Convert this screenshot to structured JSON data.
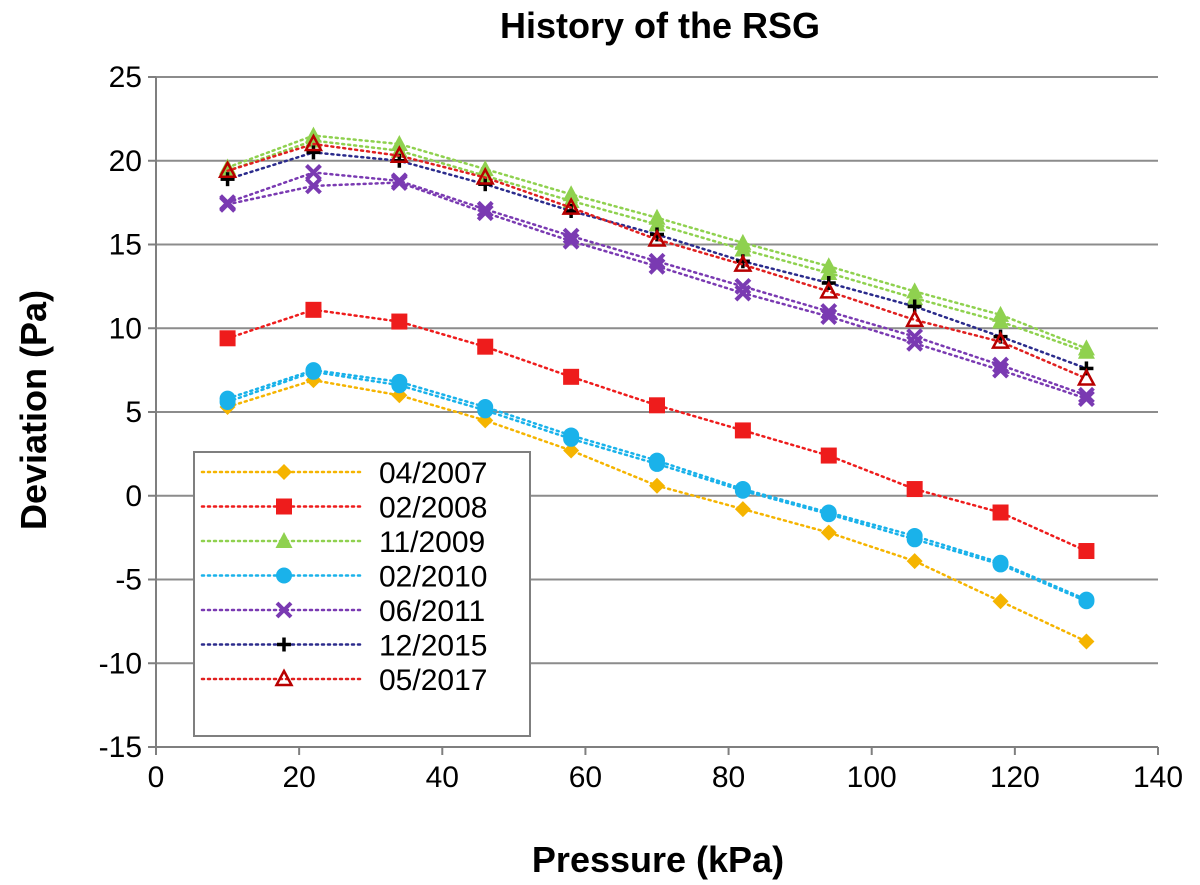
{
  "chart_data": {
    "type": "line",
    "title": "History of the RSG",
    "xlabel": "Pressure (kPa)",
    "ylabel": "Deviation (Pa)",
    "xlim": [
      0,
      140
    ],
    "ylim": [
      -15,
      25
    ],
    "xticks": [
      0,
      20,
      40,
      60,
      80,
      100,
      120,
      140
    ],
    "yticks": [
      -15,
      -10,
      -5,
      0,
      5,
      10,
      15,
      20,
      25
    ],
    "grid": "horizontal",
    "legend_position": "bottom-left",
    "series": [
      {
        "name": "04/2007",
        "color": "#f5b400",
        "marker": "diamond",
        "points": [
          [
            10,
            5.3
          ],
          [
            22,
            6.9
          ],
          [
            34,
            6.0
          ],
          [
            46,
            4.5
          ],
          [
            58,
            2.7
          ],
          [
            70,
            0.6
          ],
          [
            82,
            -0.8
          ],
          [
            94,
            -2.2
          ],
          [
            106,
            -3.9
          ],
          [
            118,
            -6.3
          ],
          [
            130,
            -8.7
          ]
        ]
      },
      {
        "name": "02/2008",
        "color": "#ee1c1c",
        "marker": "square",
        "points": [
          [
            10,
            9.4
          ],
          [
            22,
            11.1
          ],
          [
            34,
            10.4
          ],
          [
            46,
            8.9
          ],
          [
            58,
            7.1
          ],
          [
            70,
            5.4
          ],
          [
            82,
            3.9
          ],
          [
            94,
            2.4
          ],
          [
            106,
            0.4
          ],
          [
            118,
            -1.0
          ],
          [
            130,
            -3.3
          ]
        ]
      },
      {
        "name": "11/2009",
        "color": "#8fd14f",
        "marker": "triangle",
        "points": [
          [
            10,
            19.6
          ],
          [
            22,
            21.5
          ],
          [
            34,
            21.0
          ],
          [
            46,
            19.5
          ],
          [
            58,
            18.0
          ],
          [
            70,
            16.6
          ],
          [
            82,
            15.1
          ],
          [
            94,
            13.7
          ],
          [
            106,
            12.2
          ],
          [
            118,
            10.8
          ],
          [
            130,
            8.8
          ]
        ],
        "points_b": [
          [
            10,
            19.4
          ],
          [
            22,
            21.2
          ],
          [
            34,
            20.6
          ],
          [
            46,
            19.1
          ],
          [
            58,
            17.6
          ],
          [
            70,
            16.2
          ],
          [
            82,
            14.7
          ],
          [
            94,
            13.3
          ],
          [
            106,
            11.8
          ],
          [
            118,
            10.4
          ],
          [
            130,
            8.6
          ]
        ]
      },
      {
        "name": "02/2010",
        "color": "#1ab2ea",
        "marker": "circle",
        "points": [
          [
            10,
            5.8
          ],
          [
            22,
            7.5
          ],
          [
            34,
            6.8
          ],
          [
            46,
            5.3
          ],
          [
            58,
            3.6
          ],
          [
            70,
            2.1
          ],
          [
            82,
            0.4
          ],
          [
            94,
            -1.0
          ],
          [
            106,
            -2.4
          ],
          [
            118,
            -4.0
          ],
          [
            130,
            -6.2
          ]
        ],
        "points_b": [
          [
            10,
            5.6
          ],
          [
            22,
            7.4
          ],
          [
            34,
            6.6
          ],
          [
            46,
            5.1
          ],
          [
            58,
            3.4
          ],
          [
            70,
            1.9
          ],
          [
            82,
            0.3
          ],
          [
            94,
            -1.1
          ],
          [
            106,
            -2.6
          ],
          [
            118,
            -4.1
          ],
          [
            130,
            -6.3
          ]
        ]
      },
      {
        "name": "06/2011",
        "color": "#7a3ab2",
        "marker": "x",
        "points": [
          [
            10,
            17.5
          ],
          [
            22,
            19.3
          ],
          [
            34,
            18.8
          ],
          [
            46,
            17.1
          ],
          [
            58,
            15.5
          ],
          [
            70,
            14.0
          ],
          [
            82,
            12.5
          ],
          [
            94,
            11.0
          ],
          [
            106,
            9.5
          ],
          [
            118,
            7.8
          ],
          [
            130,
            6.0
          ]
        ],
        "points_b": [
          [
            10,
            17.4
          ],
          [
            22,
            18.5
          ],
          [
            34,
            18.7
          ],
          [
            46,
            16.9
          ],
          [
            58,
            15.2
          ],
          [
            70,
            13.7
          ],
          [
            82,
            12.1
          ],
          [
            94,
            10.7
          ],
          [
            106,
            9.1
          ],
          [
            118,
            7.5
          ],
          [
            130,
            5.8
          ]
        ]
      },
      {
        "name": "12/2015",
        "color": "#000000",
        "line_color": "#2b2b8c",
        "marker": "plus",
        "points": [
          [
            10,
            18.9
          ],
          [
            22,
            20.5
          ],
          [
            34,
            20.0
          ],
          [
            46,
            18.6
          ],
          [
            58,
            17.0
          ],
          [
            70,
            15.6
          ],
          [
            82,
            14.0
          ],
          [
            94,
            12.7
          ],
          [
            106,
            11.3
          ],
          [
            118,
            9.5
          ],
          [
            130,
            7.6
          ]
        ]
      },
      {
        "name": "05/2017",
        "color": "#b80000",
        "line_color": "#e02020",
        "marker": "triangle-open",
        "points": [
          [
            10,
            19.4
          ],
          [
            22,
            21.0
          ],
          [
            34,
            20.3
          ],
          [
            46,
            19.0
          ],
          [
            58,
            17.2
          ],
          [
            70,
            15.3
          ],
          [
            82,
            13.8
          ],
          [
            94,
            12.2
          ],
          [
            106,
            10.5
          ],
          [
            118,
            9.2
          ],
          [
            130,
            7.0
          ]
        ]
      }
    ]
  }
}
